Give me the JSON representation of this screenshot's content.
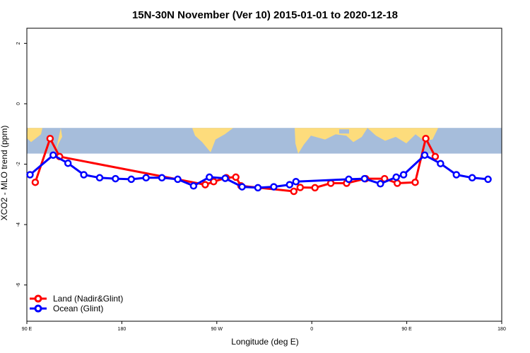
{
  "chart_data": {
    "type": "line",
    "title": "15N-30N November (Ver 10)   2015-01-01 to 2020-12-18",
    "xlabel": "Longitude (deg E)",
    "ylabel": "XCO2 - MLO trend (ppm)",
    "xlim": [
      90,
      540
    ],
    "ylim": [
      -7.2,
      2.5
    ],
    "x_ticks": [
      {
        "value": 90,
        "label": "90 E"
      },
      {
        "value": 180,
        "label": "180"
      },
      {
        "value": 270,
        "label": "90 W"
      },
      {
        "value": 360,
        "label": "0"
      },
      {
        "value": 450,
        "label": "90 E"
      },
      {
        "value": 540,
        "label": "180"
      }
    ],
    "y_ticks": [
      {
        "value": 2,
        "label": "2"
      },
      {
        "value": 0,
        "label": "0"
      },
      {
        "value": -2,
        "label": "-2"
      },
      {
        "value": -4,
        "label": "-4"
      },
      {
        "value": -6,
        "label": "-6"
      }
    ],
    "map_band": {
      "y_top": -0.8,
      "y_bottom": -1.65,
      "ocean_color": "#a6bddb",
      "land_color": "#fddc7c"
    },
    "legend_position": "bottom-left",
    "series": [
      {
        "name": "Land (Nadir&Glint)",
        "color": "#ff0000",
        "points": [
          [
            98,
            -2.6
          ],
          [
            112,
            -1.15
          ],
          [
            121,
            -1.75
          ],
          [
            259,
            -2.68
          ],
          [
            267,
            -2.58
          ],
          [
            279,
            -2.45
          ],
          [
            288,
            -2.43
          ],
          [
            293,
            -2.72
          ],
          [
            343,
            -2.9
          ],
          [
            349,
            -2.77
          ],
          [
            363,
            -2.78
          ],
          [
            378,
            -2.63
          ],
          [
            393,
            -2.63
          ],
          [
            411,
            -2.48
          ],
          [
            429,
            -2.48
          ],
          [
            441,
            -2.63
          ],
          [
            458,
            -2.6
          ],
          [
            468,
            -1.15
          ],
          [
            477,
            -1.75
          ]
        ]
      },
      {
        "name": "Ocean (Glint)",
        "color": "#0000ff",
        "points": [
          [
            93,
            -2.35
          ],
          [
            115,
            -1.7
          ],
          [
            129,
            -1.97
          ],
          [
            144,
            -2.35
          ],
          [
            159,
            -2.45
          ],
          [
            174,
            -2.48
          ],
          [
            189,
            -2.5
          ],
          [
            203,
            -2.45
          ],
          [
            218,
            -2.45
          ],
          [
            233,
            -2.5
          ],
          [
            248,
            -2.72
          ],
          [
            263,
            -2.43
          ],
          [
            278,
            -2.47
          ],
          [
            294,
            -2.75
          ],
          [
            309,
            -2.78
          ],
          [
            324,
            -2.75
          ],
          [
            339,
            -2.68
          ],
          [
            345,
            -2.58
          ],
          [
            395,
            -2.5
          ],
          [
            410,
            -2.48
          ],
          [
            425,
            -2.65
          ],
          [
            440,
            -2.43
          ],
          [
            447,
            -2.35
          ],
          [
            467,
            -1.7
          ],
          [
            482,
            -1.98
          ],
          [
            497,
            -2.35
          ],
          [
            512,
            -2.45
          ],
          [
            527,
            -2.5
          ]
        ]
      }
    ]
  }
}
